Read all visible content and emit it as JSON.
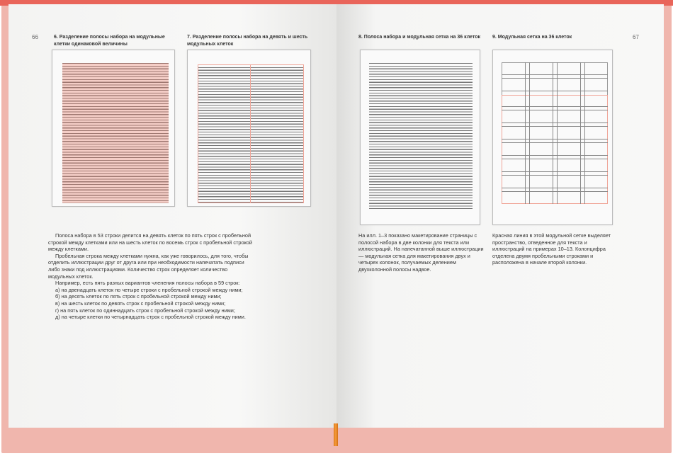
{
  "left_page": {
    "page_number": "66",
    "figure6_caption": "6. Разделение полосы набора на модульные клетки одинаковой величины",
    "figure7_caption": "7. Разделение полосы набора на девять и шесть модульных клеток",
    "paragraphs": [
      "Полоса набора в 53 строки делится на девять клеток по пять строк с пробельной строкой между клетками или на шесть клеток по восемь строк с пробельной строкой между клетками.",
      "Пробельная строка между клетками нужна, как уже говорилось, для того, чтобы отделить иллюстрации друг от друга или при необходимости напечатать подписи либо знаки под иллюстрациями. Количество строк определяет количество модульных клеток.",
      "Например, есть пять разных вариантов членения полосы набора в 59 строк:"
    ],
    "list": [
      "а) на двенадцать клеток по четыре строки с пробельной строкой между ними;",
      "б) на десять клеток по пять строк с пробельной строкой между ними;",
      "в) на шесть клеток по девять строк с пробельной строкой между ними;",
      "г) на пять клеток по одиннадцать строк с пробельной строкой между ними;",
      "д) на четыре клетки по четырнадцать строк с пробельной строкой между ними."
    ]
  },
  "right_page": {
    "page_number": "67",
    "figure8_caption": "8. Полоса набора и модульная сетка на 36 клеток",
    "figure9_caption": "9. Модульная сетка на 36 клеток",
    "text8": "На илл. 1–3 показано макетирование страницы с полосой набора в две колонки для текста или иллюстраций. На напечатанной выше иллюстрации — модульная сетка для макетирования двух и четырех колонок, получаемых делением двухколонной полосы надвое.",
    "text9": "Красная линия в этой модульной сетке выделяет пространство, отведенное для текста и иллюстраций на примерах 10–13. Колонцифра отделена двумя пробельными строками и расположена в начале второй колонки."
  },
  "colors": {
    "cover": "#f0b6ad",
    "cover_edge": "#e9655a",
    "grid_red": "#f0a598",
    "ribbon": "#e88a2a"
  }
}
